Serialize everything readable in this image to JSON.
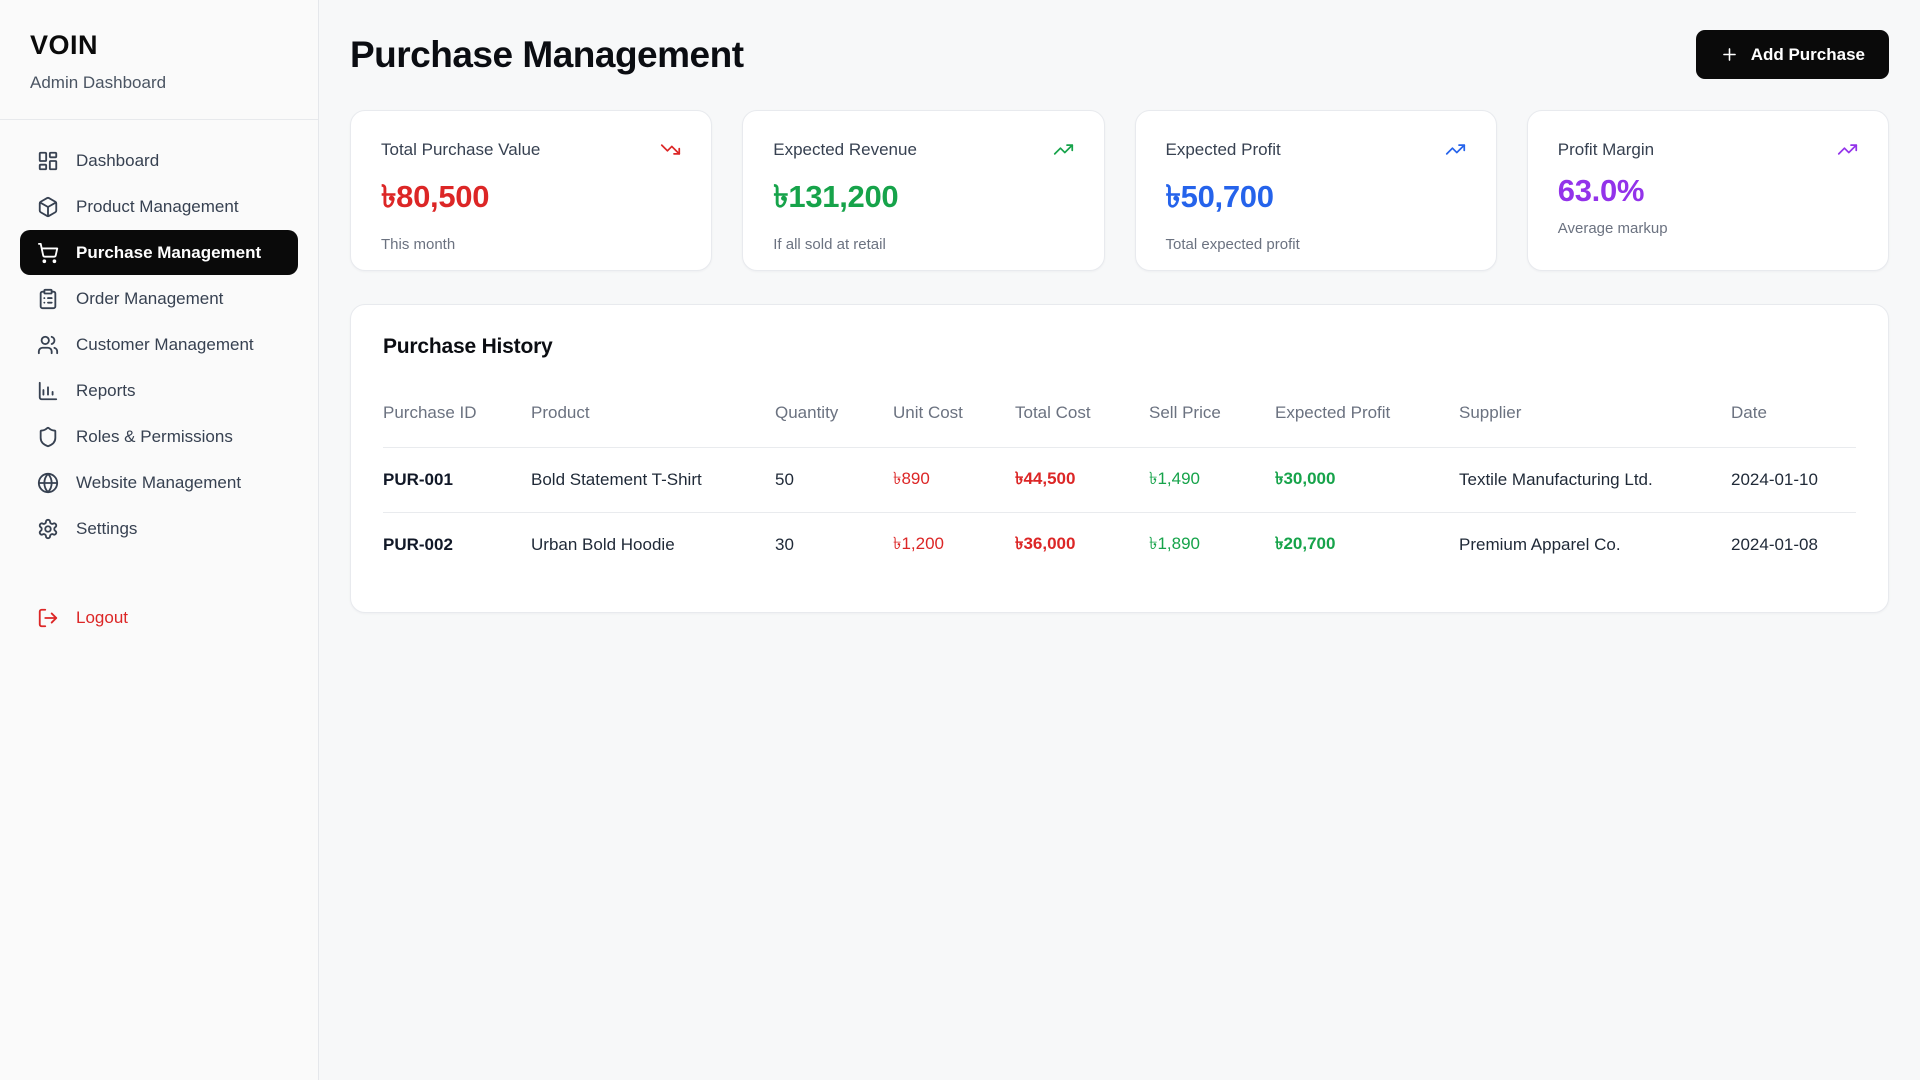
{
  "sidebar": {
    "logo": "VOIN",
    "subtitle": "Admin Dashboard",
    "items": [
      {
        "label": "Dashboard",
        "icon": "dashboard-icon",
        "active": false
      },
      {
        "label": "Product Management",
        "icon": "package-icon",
        "active": false
      },
      {
        "label": "Purchase Management",
        "icon": "shopping-cart-icon",
        "active": true
      },
      {
        "label": "Order Management",
        "icon": "clipboard-list-icon",
        "active": false
      },
      {
        "label": "Customer Management",
        "icon": "users-icon",
        "active": false
      },
      {
        "label": "Reports",
        "icon": "bar-chart-icon",
        "active": false
      },
      {
        "label": "Roles & Permissions",
        "icon": "shield-icon",
        "active": false
      },
      {
        "label": "Website Management",
        "icon": "globe-icon",
        "active": false
      },
      {
        "label": "Settings",
        "icon": "gear-icon",
        "active": false
      }
    ],
    "logout_label": "Logout"
  },
  "header": {
    "title": "Purchase Management",
    "add_button": "Add Purchase"
  },
  "stats": [
    {
      "label": "Total Purchase Value",
      "value": "৳80,500",
      "sub": "This month",
      "color": "#dc2626",
      "trend": "down"
    },
    {
      "label": "Expected Revenue",
      "value": "৳131,200",
      "sub": "If all sold at retail",
      "color": "#16a34a",
      "trend": "up"
    },
    {
      "label": "Expected Profit",
      "value": "৳50,700",
      "sub": "Total expected profit",
      "color": "#2563eb",
      "trend": "up"
    },
    {
      "label": "Profit Margin",
      "value": "63.0%",
      "sub": "Average markup",
      "color": "#9333ea",
      "trend": "up"
    }
  ],
  "table": {
    "title": "Purchase History",
    "columns": [
      "Purchase ID",
      "Product",
      "Quantity",
      "Unit Cost",
      "Total Cost",
      "Sell Price",
      "Expected Profit",
      "Supplier",
      "Date"
    ],
    "rows": [
      {
        "purchase_id": "PUR-001",
        "product": "Bold Statement T-Shirt",
        "quantity": "50",
        "unit_cost": "৳890",
        "total_cost": "৳44,500",
        "sell_price": "৳1,490",
        "expected_profit": "৳30,000",
        "supplier": "Textile Manufacturing Ltd.",
        "date": "2024-01-10"
      },
      {
        "purchase_id": "PUR-002",
        "product": "Urban Bold Hoodie",
        "quantity": "30",
        "unit_cost": "৳1,200",
        "total_cost": "৳36,000",
        "sell_price": "৳1,890",
        "expected_profit": "৳20,700",
        "supplier": "Premium Apparel Co.",
        "date": "2024-01-08"
      }
    ]
  },
  "colors": {
    "negative": "#dc2626",
    "positive": "#16a34a",
    "info": "#2563eb",
    "accent_purple": "#9333ea",
    "active_nav_bg": "#0a0a0a"
  }
}
